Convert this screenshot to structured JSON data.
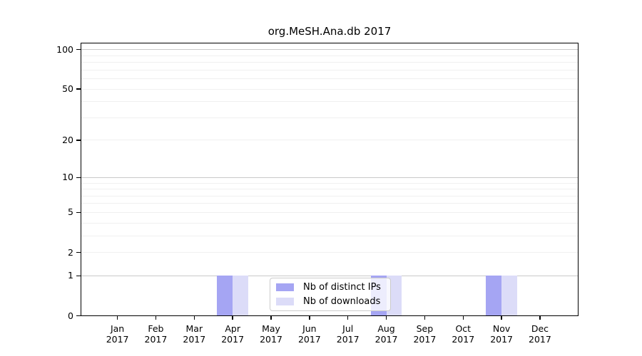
{
  "chart_data": {
    "type": "bar",
    "title": "org.MeSH.Ana.db 2017",
    "year": "2017",
    "months": [
      "Jan",
      "Feb",
      "Mar",
      "Apr",
      "May",
      "Jun",
      "Jul",
      "Aug",
      "Sep",
      "Oct",
      "Nov",
      "Dec"
    ],
    "series": [
      {
        "name": "Nb of distinct IPs",
        "key": "distinct-ips",
        "color": "#a5a5f3",
        "values": [
          0,
          0,
          0,
          1,
          0,
          0,
          0,
          1,
          0,
          0,
          1,
          0
        ]
      },
      {
        "name": "Nb of downloads",
        "key": "downloads",
        "color": "#dcdcf8",
        "values": [
          0,
          0,
          0,
          1,
          0,
          0,
          0,
          1,
          0,
          0,
          1,
          0
        ]
      }
    ],
    "yscale": "log1p",
    "ylim": [
      0,
      113
    ],
    "yticks": [
      0,
      1,
      2,
      5,
      10,
      20,
      50,
      100
    ],
    "gridlines": {
      "major": [
        1,
        10,
        100
      ],
      "minor": [
        2,
        3,
        4,
        5,
        6,
        7,
        8,
        9,
        20,
        30,
        40,
        50,
        60,
        70,
        80,
        90
      ]
    },
    "legend_position": "bottom-center-inside",
    "colors": {
      "grid_major": "#c9c9c9",
      "grid_minor": "#f0f0f0",
      "axis": "#000000",
      "legend_border": "#cccccc",
      "legend_bg": "rgba(255,255,255,0.8)"
    }
  }
}
